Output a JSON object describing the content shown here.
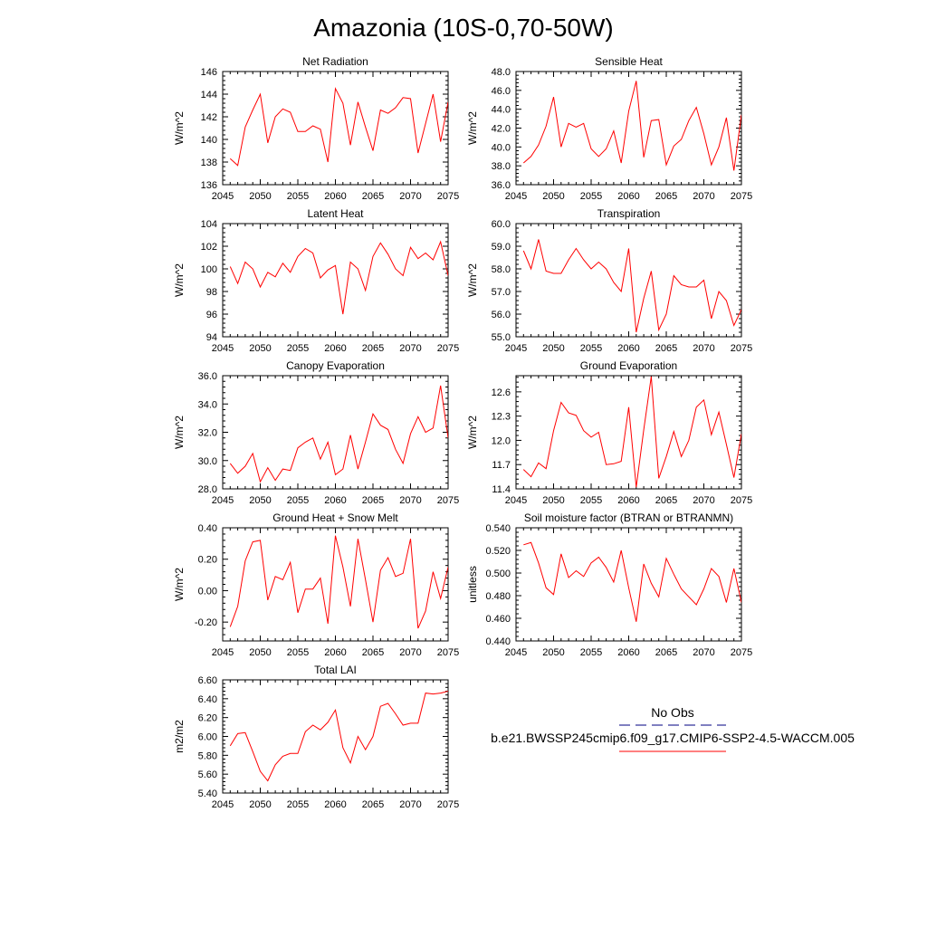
{
  "figure": {
    "title": "Amazonia (10S-0,70-50W)"
  },
  "legend": {
    "entries": [
      {
        "label": "No Obs",
        "color": "#000080",
        "dashed": true
      },
      {
        "label": "b.e21.BWSSP245cmip6.f09_g17.CMIP6-SSP2-4.5-WACCM.005",
        "color": "#ff0000",
        "dashed": false
      }
    ]
  },
  "series_color": "#ff0000",
  "chart_data": [
    {
      "type": "line",
      "title": "Net Radiation",
      "ylabel": "W/m^2",
      "xlim": [
        2045,
        2075
      ],
      "ylim": [
        136,
        146
      ],
      "xticks": [
        2045,
        2050,
        2055,
        2060,
        2065,
        2070,
        2075
      ],
      "yticks": [
        136,
        138,
        140,
        142,
        144,
        146
      ],
      "yticklabels": [
        "136",
        "138",
        "140",
        "142",
        "144",
        "146"
      ],
      "x": [
        2046,
        2047,
        2048,
        2049,
        2050,
        2051,
        2052,
        2053,
        2054,
        2055,
        2056,
        2057,
        2058,
        2059,
        2060,
        2061,
        2062,
        2063,
        2064,
        2065,
        2066,
        2067,
        2068,
        2069,
        2070,
        2071,
        2072,
        2073,
        2074,
        2075
      ],
      "y": [
        138.3,
        137.7,
        141.1,
        142.6,
        144.0,
        139.7,
        142.0,
        142.7,
        142.4,
        140.7,
        140.7,
        141.2,
        140.9,
        138.0,
        144.5,
        143.2,
        139.5,
        143.3,
        141.1,
        139.0,
        142.6,
        142.3,
        142.8,
        143.7,
        143.6,
        138.8,
        141.4,
        144.0,
        139.8,
        143.3
      ]
    },
    {
      "type": "line",
      "title": "Sensible Heat",
      "ylabel": "W/m^2",
      "xlim": [
        2045,
        2075
      ],
      "ylim": [
        36.0,
        48.0
      ],
      "xticks": [
        2045,
        2050,
        2055,
        2060,
        2065,
        2070,
        2075
      ],
      "yticks": [
        36,
        38,
        40,
        42,
        44,
        46,
        48
      ],
      "yticklabels": [
        "36.0",
        "38.0",
        "40.0",
        "42.0",
        "44.0",
        "46.0",
        "48.0"
      ],
      "x": [
        2046,
        2047,
        2048,
        2049,
        2050,
        2051,
        2052,
        2053,
        2054,
        2055,
        2056,
        2057,
        2058,
        2059,
        2060,
        2061,
        2062,
        2063,
        2064,
        2065,
        2066,
        2067,
        2068,
        2069,
        2070,
        2071,
        2072,
        2073,
        2074,
        2075
      ],
      "y": [
        38.3,
        39.0,
        40.2,
        42.2,
        45.3,
        40.0,
        42.5,
        42.1,
        42.5,
        39.8,
        39.0,
        39.8,
        41.7,
        38.3,
        43.8,
        47.0,
        38.9,
        42.8,
        42.9,
        38.1,
        40.1,
        40.8,
        42.8,
        44.2,
        41.4,
        38.1,
        40.0,
        43.1,
        37.5,
        43.4
      ]
    },
    {
      "type": "line",
      "title": "Latent Heat",
      "ylabel": "W/m^2",
      "xlim": [
        2045,
        2075
      ],
      "ylim": [
        94,
        104
      ],
      "xticks": [
        2045,
        2050,
        2055,
        2060,
        2065,
        2070,
        2075
      ],
      "yticks": [
        94,
        96,
        98,
        100,
        102,
        104
      ],
      "yticklabels": [
        "94",
        "96",
        "98",
        "100",
        "102",
        "104"
      ],
      "x": [
        2046,
        2047,
        2048,
        2049,
        2050,
        2051,
        2052,
        2053,
        2054,
        2055,
        2056,
        2057,
        2058,
        2059,
        2060,
        2061,
        2062,
        2063,
        2064,
        2065,
        2066,
        2067,
        2068,
        2069,
        2070,
        2071,
        2072,
        2073,
        2074,
        2075
      ],
      "y": [
        100.2,
        98.7,
        100.6,
        100.0,
        98.4,
        99.7,
        99.3,
        100.5,
        99.7,
        101.1,
        101.8,
        101.4,
        99.2,
        99.9,
        100.3,
        96.0,
        100.6,
        100.0,
        98.1,
        101.1,
        102.3,
        101.3,
        100.0,
        99.4,
        101.9,
        100.9,
        101.4,
        100.8,
        102.4,
        99.4
      ]
    },
    {
      "type": "line",
      "title": "Transpiration",
      "ylabel": "W/m^2",
      "xlim": [
        2045,
        2075
      ],
      "ylim": [
        55.0,
        60.0
      ],
      "xticks": [
        2045,
        2050,
        2055,
        2060,
        2065,
        2070,
        2075
      ],
      "yticks": [
        55,
        56,
        57,
        58,
        59,
        60
      ],
      "yticklabels": [
        "55.0",
        "56.0",
        "57.0",
        "58.0",
        "59.0",
        "60.0"
      ],
      "x": [
        2046,
        2047,
        2048,
        2049,
        2050,
        2051,
        2052,
        2053,
        2054,
        2055,
        2056,
        2057,
        2058,
        2059,
        2060,
        2061,
        2062,
        2063,
        2064,
        2065,
        2066,
        2067,
        2068,
        2069,
        2070,
        2071,
        2072,
        2073,
        2074,
        2075
      ],
      "y": [
        58.8,
        58.0,
        59.3,
        57.9,
        57.8,
        57.8,
        58.4,
        58.9,
        58.4,
        58.0,
        58.3,
        58.0,
        57.4,
        57.0,
        58.9,
        55.2,
        56.7,
        57.9,
        55.3,
        56.0,
        57.7,
        57.3,
        57.2,
        57.2,
        57.5,
        55.8,
        57.0,
        56.6,
        55.5,
        56.2
      ]
    },
    {
      "type": "line",
      "title": "Canopy Evaporation",
      "ylabel": "W/m^2",
      "xlim": [
        2045,
        2075
      ],
      "ylim": [
        28.0,
        36.0
      ],
      "xticks": [
        2045,
        2050,
        2055,
        2060,
        2065,
        2070,
        2075
      ],
      "yticks": [
        28,
        30,
        32,
        34,
        36
      ],
      "yticklabels": [
        "28.0",
        "30.0",
        "32.0",
        "34.0",
        "36.0"
      ],
      "x": [
        2046,
        2047,
        2048,
        2049,
        2050,
        2051,
        2052,
        2053,
        2054,
        2055,
        2056,
        2057,
        2058,
        2059,
        2060,
        2061,
        2062,
        2063,
        2064,
        2065,
        2066,
        2067,
        2068,
        2069,
        2070,
        2071,
        2072,
        2073,
        2074,
        2075
      ],
      "y": [
        29.8,
        29.1,
        29.6,
        30.5,
        28.5,
        29.5,
        28.6,
        29.4,
        29.3,
        30.9,
        31.3,
        31.6,
        30.1,
        31.3,
        29.0,
        29.4,
        31.8,
        29.4,
        31.3,
        33.3,
        32.5,
        32.2,
        30.8,
        29.8,
        31.9,
        33.1,
        32.0,
        32.3,
        35.3,
        31.6
      ]
    },
    {
      "type": "line",
      "title": "Ground Evaporation",
      "ylabel": "W/m^2",
      "xlim": [
        2045,
        2075
      ],
      "ylim": [
        11.4,
        12.8
      ],
      "xticks": [
        2045,
        2050,
        2055,
        2060,
        2065,
        2070,
        2075
      ],
      "yticks": [
        11.4,
        11.7,
        12.0,
        12.3,
        12.6
      ],
      "yticklabels": [
        "11.4",
        "11.7",
        "12.0",
        "12.3",
        "12.6"
      ],
      "x": [
        2046,
        2047,
        2048,
        2049,
        2050,
        2051,
        2052,
        2053,
        2054,
        2055,
        2056,
        2057,
        2058,
        2059,
        2060,
        2061,
        2062,
        2063,
        2064,
        2065,
        2066,
        2067,
        2068,
        2069,
        2070,
        2071,
        2072,
        2073,
        2074,
        2075
      ],
      "y": [
        11.64,
        11.55,
        11.72,
        11.65,
        12.12,
        12.47,
        12.34,
        12.31,
        12.12,
        12.04,
        12.1,
        11.7,
        11.71,
        11.74,
        12.41,
        11.42,
        12.13,
        12.79,
        11.53,
        11.8,
        12.11,
        11.8,
        12.0,
        12.41,
        12.5,
        12.07,
        12.35,
        11.95,
        11.54,
        12.08
      ]
    },
    {
      "type": "line",
      "title": "Ground Heat + Snow Melt",
      "ylabel": "W/m^2",
      "xlim": [
        2045,
        2075
      ],
      "ylim": [
        -0.32,
        0.4
      ],
      "xticks": [
        2045,
        2050,
        2055,
        2060,
        2065,
        2070,
        2075
      ],
      "yticks": [
        -0.2,
        0.0,
        0.2,
        0.4
      ],
      "yticklabels": [
        "-0.20",
        "0.00",
        "0.20",
        "0.40"
      ],
      "x": [
        2046,
        2047,
        2048,
        2049,
        2050,
        2051,
        2052,
        2053,
        2054,
        2055,
        2056,
        2057,
        2058,
        2059,
        2060,
        2061,
        2062,
        2063,
        2064,
        2065,
        2066,
        2067,
        2068,
        2069,
        2070,
        2071,
        2072,
        2073,
        2074,
        2075
      ],
      "y": [
        -0.23,
        -0.1,
        0.19,
        0.31,
        0.32,
        -0.06,
        0.09,
        0.07,
        0.18,
        -0.14,
        0.01,
        0.01,
        0.08,
        -0.21,
        0.35,
        0.15,
        -0.1,
        0.33,
        0.07,
        -0.2,
        0.13,
        0.21,
        0.09,
        0.11,
        0.33,
        -0.24,
        -0.13,
        0.12,
        -0.05,
        0.15
      ]
    },
    {
      "type": "line",
      "title": "Soil moisture factor (BTRAN or BTRANMN)",
      "ylabel": "unitless",
      "xlim": [
        2045,
        2075
      ],
      "ylim": [
        0.44,
        0.54
      ],
      "xticks": [
        2045,
        2050,
        2055,
        2060,
        2065,
        2070,
        2075
      ],
      "yticks": [
        0.44,
        0.46,
        0.48,
        0.5,
        0.52,
        0.54
      ],
      "yticklabels": [
        "0.440",
        "0.460",
        "0.480",
        "0.500",
        "0.520",
        "0.540"
      ],
      "x": [
        2046,
        2047,
        2048,
        2049,
        2050,
        2051,
        2052,
        2053,
        2054,
        2055,
        2056,
        2057,
        2058,
        2059,
        2060,
        2061,
        2062,
        2063,
        2064,
        2065,
        2066,
        2067,
        2068,
        2069,
        2070,
        2071,
        2072,
        2073,
        2074,
        2075
      ],
      "y": [
        0.525,
        0.527,
        0.509,
        0.487,
        0.481,
        0.517,
        0.496,
        0.502,
        0.497,
        0.509,
        0.514,
        0.505,
        0.492,
        0.52,
        0.487,
        0.457,
        0.508,
        0.491,
        0.479,
        0.513,
        0.499,
        0.486,
        0.479,
        0.472,
        0.486,
        0.504,
        0.497,
        0.474,
        0.504,
        0.474
      ]
    },
    {
      "type": "line",
      "title": "Total LAI",
      "ylabel": "m2/m2",
      "xlim": [
        2045,
        2075
      ],
      "ylim": [
        5.4,
        6.6
      ],
      "xticks": [
        2045,
        2050,
        2055,
        2060,
        2065,
        2070,
        2075
      ],
      "yticks": [
        5.4,
        5.6,
        5.8,
        6.0,
        6.2,
        6.4,
        6.6
      ],
      "yticklabels": [
        "5.40",
        "5.60",
        "5.80",
        "6.00",
        "6.20",
        "6.40",
        "6.60"
      ],
      "x": [
        2046,
        2047,
        2048,
        2049,
        2050,
        2051,
        2052,
        2053,
        2054,
        2055,
        2056,
        2057,
        2058,
        2059,
        2060,
        2061,
        2062,
        2063,
        2064,
        2065,
        2066,
        2067,
        2068,
        2069,
        2070,
        2071,
        2072,
        2073,
        2074,
        2075
      ],
      "y": [
        5.9,
        6.03,
        6.04,
        5.84,
        5.63,
        5.53,
        5.7,
        5.79,
        5.82,
        5.82,
        6.05,
        6.12,
        6.07,
        6.15,
        6.28,
        5.88,
        5.72,
        6.0,
        5.86,
        6.0,
        6.32,
        6.35,
        6.24,
        6.12,
        6.14,
        6.14,
        6.46,
        6.45,
        6.46,
        6.48
      ]
    }
  ]
}
